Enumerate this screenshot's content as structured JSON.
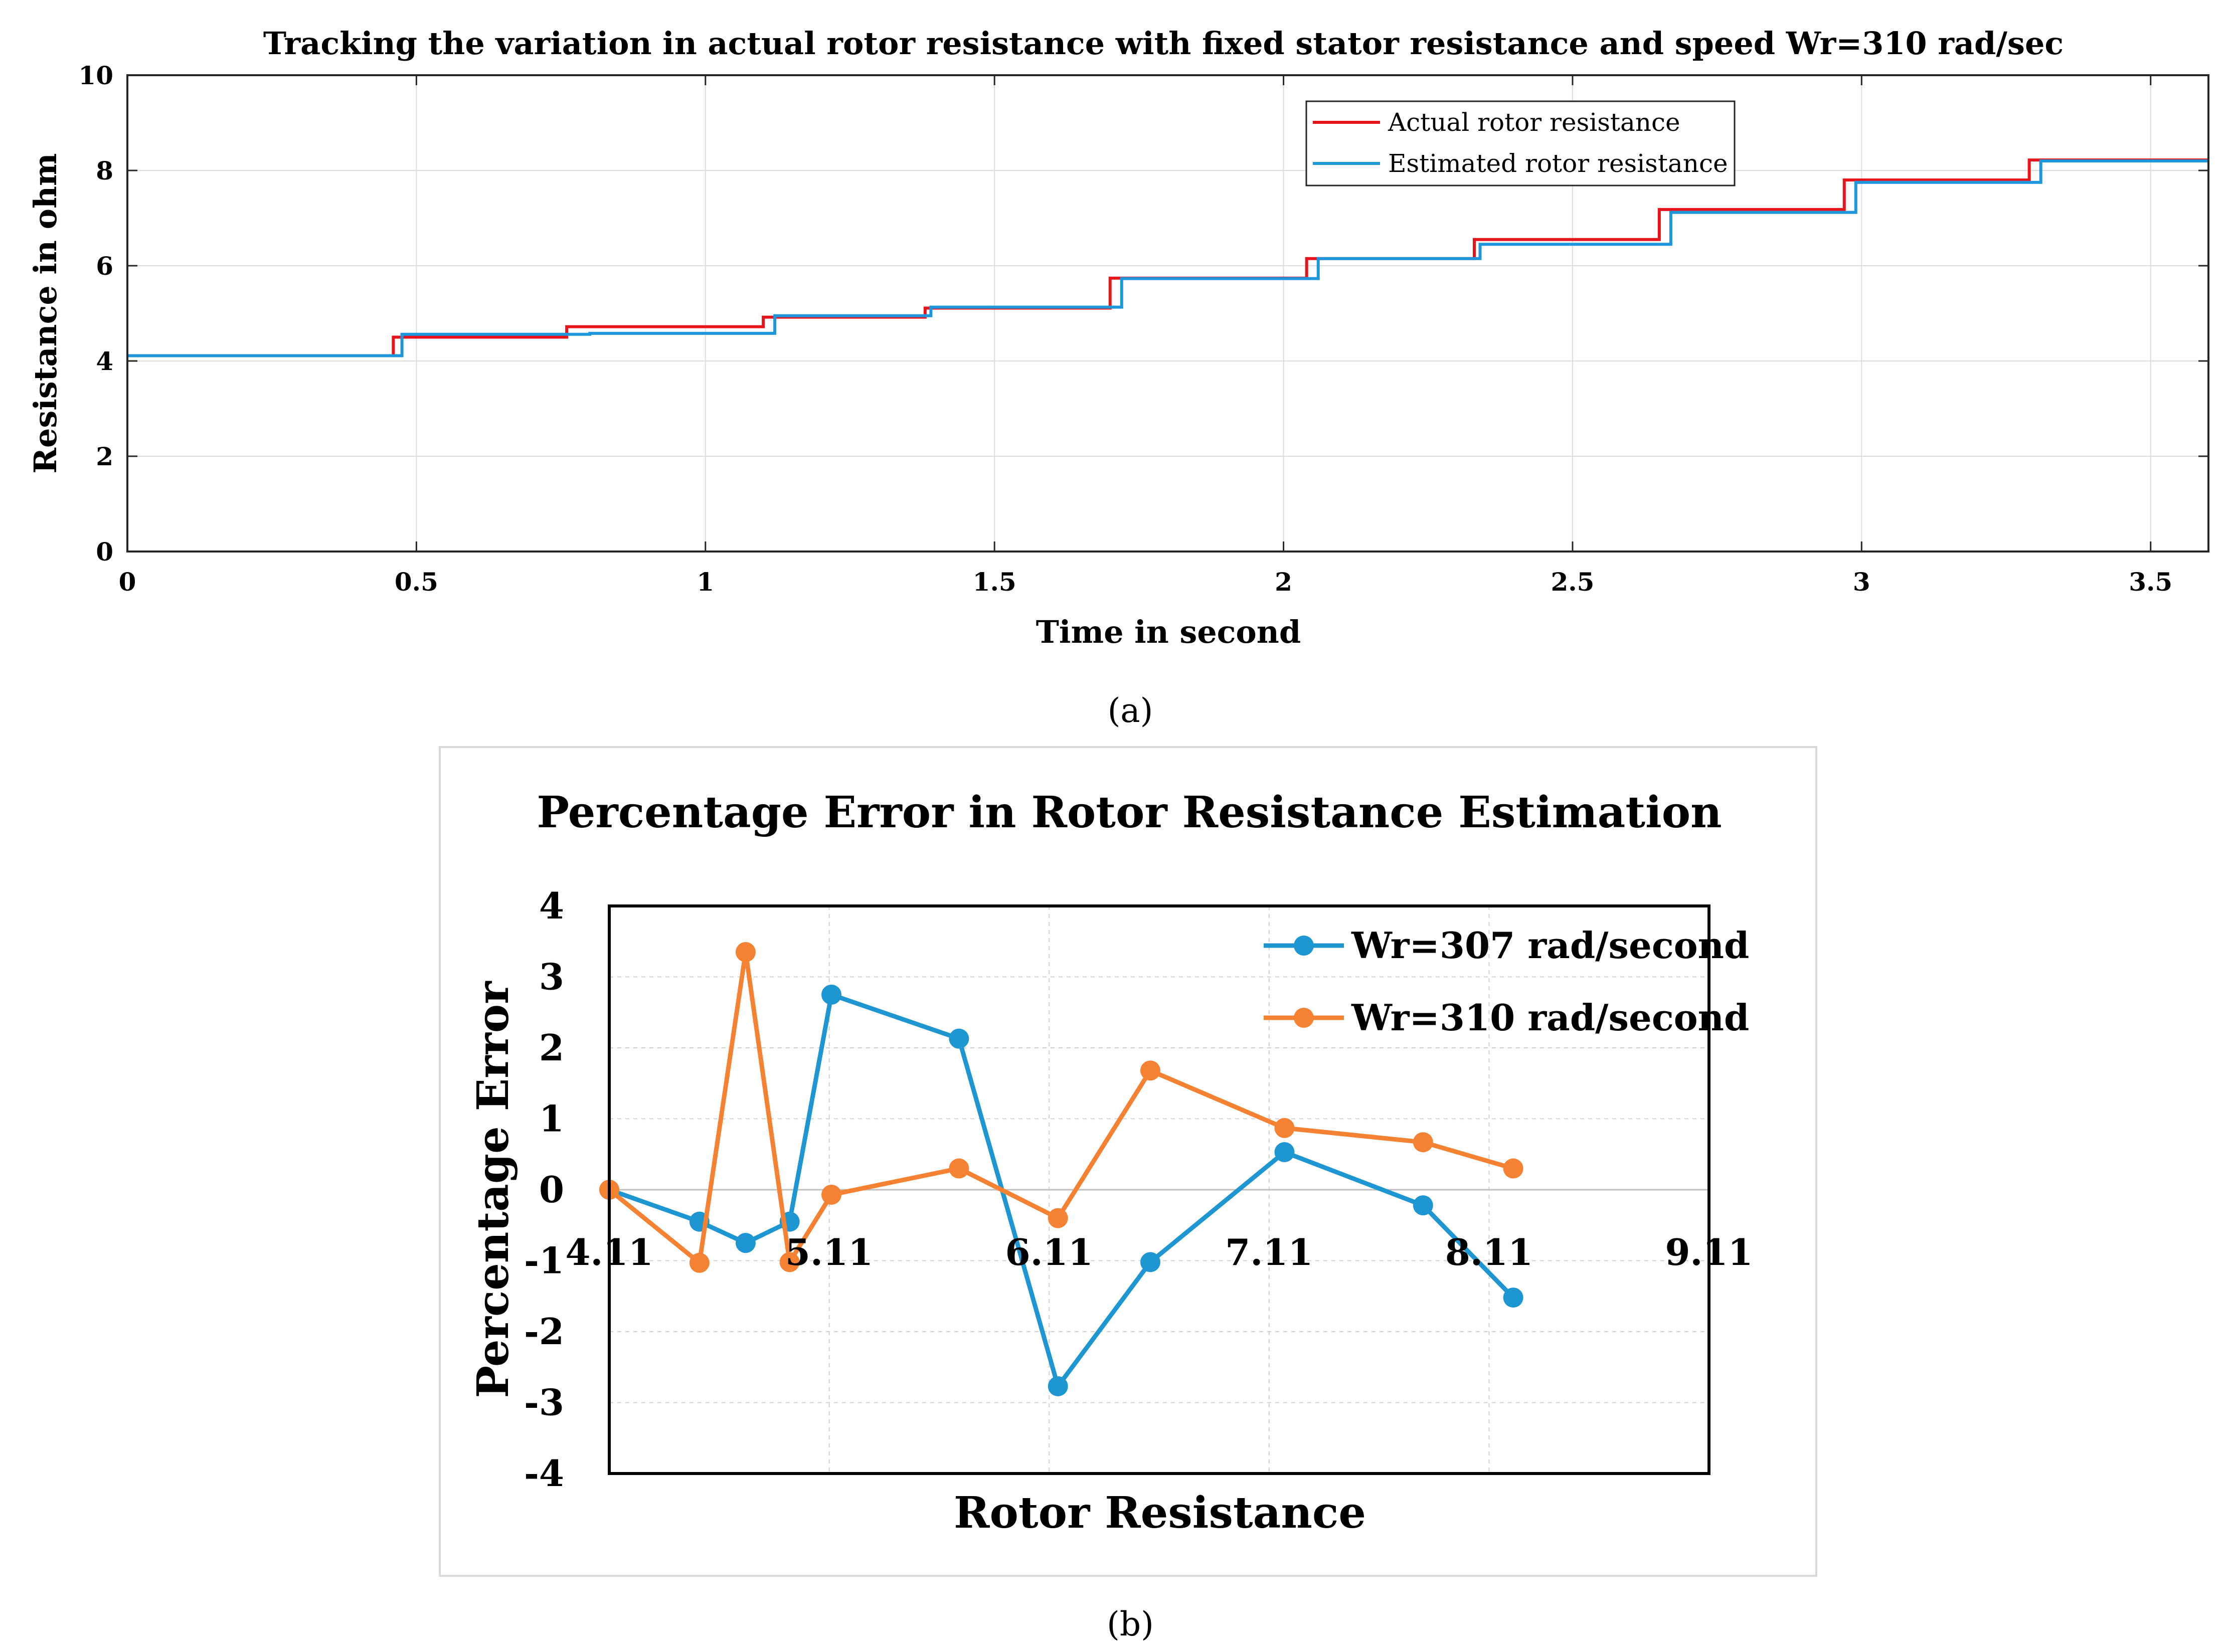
{
  "captions": {
    "a": "(a)",
    "b": "(b)"
  },
  "chart_data": [
    {
      "type": "line",
      "title": "Tracking the variation in actual rotor resistance with fixed stator resistance and speed Wr=310 rad/sec",
      "xlabel": "Time in second",
      "ylabel": "Resistance in ohm",
      "xlim": [
        0,
        3.6
      ],
      "ylim": [
        0,
        10
      ],
      "xticks": [
        0,
        0.5,
        1,
        1.5,
        2,
        2.5,
        3,
        3.5
      ],
      "xtick_labels": [
        "0",
        "0.5",
        "1",
        "1.5",
        "2",
        "2.5",
        "3",
        "3.5"
      ],
      "yticks": [
        0,
        2,
        4,
        6,
        8,
        10
      ],
      "ytick_labels": [
        "0",
        "2",
        "4",
        "6",
        "8",
        "10"
      ],
      "grid": true,
      "legend_position": "top-right",
      "series": [
        {
          "name": "Actual rotor resistance",
          "color": "#e8141c",
          "step": true,
          "x": [
            0,
            0.46,
            0.76,
            1.1,
            1.38,
            1.7,
            2.04,
            2.33,
            2.65,
            2.97,
            3.29,
            3.6
          ],
          "y": [
            4.11,
            4.5,
            4.72,
            4.92,
            5.11,
            5.74,
            6.15,
            6.55,
            7.18,
            7.8,
            8.22,
            8.22
          ]
        },
        {
          "name": "Estimated rotor resistance",
          "color": "#1e96dc",
          "step": true,
          "x": [
            0,
            0.475,
            0.8,
            1.12,
            1.39,
            1.72,
            2.06,
            2.34,
            2.67,
            2.99,
            3.31,
            3.6
          ],
          "y": [
            4.11,
            4.56,
            4.58,
            4.95,
            5.13,
            5.73,
            6.15,
            6.45,
            7.12,
            7.75,
            8.2,
            8.2
          ]
        }
      ]
    },
    {
      "type": "line",
      "title": "Percentage Error in Rotor Resistance Estimation",
      "xlabel": "Rotor Resistance",
      "ylabel": "Percentage Error",
      "xlim": [
        4.11,
        9.11
      ],
      "ylim": [
        -4,
        4
      ],
      "xticks": [
        4.11,
        5.11,
        6.11,
        7.11,
        8.11,
        9.11
      ],
      "xtick_labels": [
        "4.11",
        "5.11",
        "6.11",
        "7.11",
        "8.11",
        "9.11"
      ],
      "yticks": [
        4,
        3,
        2,
        1,
        0,
        -1,
        -2,
        -3,
        -4
      ],
      "ytick_labels": [
        "4",
        "3",
        "2",
        "1",
        "0",
        "-1",
        "-2",
        "-3",
        "-4"
      ],
      "grid": true,
      "legend_position": "top-right",
      "series": [
        {
          "name": "Wr=307 rad/second",
          "color": "#1e96d2",
          "x": [
            4.11,
            4.52,
            4.73,
            4.93,
            5.12,
            5.7,
            6.15,
            6.57,
            7.18,
            7.81,
            8.22
          ],
          "y": [
            0,
            -0.45,
            -0.75,
            -0.45,
            2.75,
            2.13,
            -2.77,
            -1.02,
            0.53,
            -0.22,
            -1.52
          ]
        },
        {
          "name": "Wr=310 rad/second",
          "color": "#f58232",
          "x": [
            4.11,
            4.52,
            4.73,
            4.93,
            5.12,
            5.7,
            6.15,
            6.57,
            7.18,
            7.81,
            8.22
          ],
          "y": [
            0,
            -1.03,
            3.35,
            -1.02,
            -0.07,
            0.3,
            -0.4,
            1.68,
            0.87,
            0.67,
            0.3
          ]
        }
      ]
    }
  ]
}
